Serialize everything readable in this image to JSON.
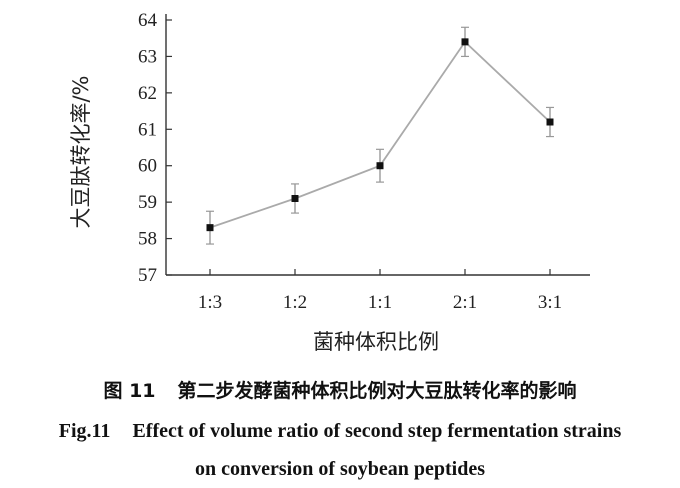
{
  "chart_data": {
    "type": "line",
    "categories": [
      "1:3",
      "1:2",
      "1:1",
      "2:1",
      "3:1"
    ],
    "values": [
      58.3,
      59.1,
      60.0,
      63.4,
      61.2
    ],
    "errors": [
      0.45,
      0.4,
      0.45,
      0.4,
      0.4
    ],
    "xlabel": "菌种体积比例",
    "ylabel": "大豆肽转化率/%",
    "ylim": [
      57,
      64
    ],
    "yticks": [
      57,
      58,
      59,
      60,
      61,
      62,
      63,
      64
    ],
    "grid": false,
    "legend": "none",
    "line_color": "#aaaaaa",
    "marker_color": "#111111"
  },
  "caption": {
    "cn_number": "图 11",
    "cn_text": "第二步发酵菌种体积比例对大豆肽转化率的影响",
    "en_number": "Fig.11",
    "en_text_line1": "Effect of volume ratio of second step fermentation strains",
    "en_text_line2": "on conversion of soybean peptides"
  }
}
